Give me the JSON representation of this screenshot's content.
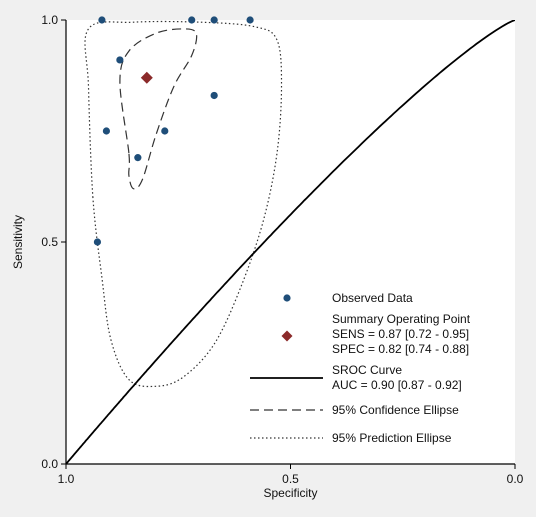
{
  "chart_data": {
    "type": "scatter",
    "title": "",
    "xlabel": "Specificity",
    "ylabel": "Sensitivity",
    "x_reversed": true,
    "xlim": [
      1.0,
      0.0
    ],
    "ylim": [
      0.0,
      1.0
    ],
    "x_ticks": [
      "1.0",
      "0.5",
      "0.0"
    ],
    "y_ticks": [
      "0.0",
      "0.5",
      "1.0"
    ],
    "grid": false,
    "legend_placement": "bottom-right",
    "colors": {
      "observed": "#1f4e79",
      "summary": "#8b2a2a",
      "axes": "#000000",
      "plot_bg": "#ffffff",
      "page_bg": "#f0f0f0"
    },
    "series": [
      {
        "name": "Observed Data",
        "kind": "points",
        "points": [
          {
            "x": 0.92,
            "y": 1.0
          },
          {
            "x": 0.72,
            "y": 1.0
          },
          {
            "x": 0.67,
            "y": 1.0
          },
          {
            "x": 0.59,
            "y": 1.0
          },
          {
            "x": 0.88,
            "y": 0.91
          },
          {
            "x": 0.67,
            "y": 0.83
          },
          {
            "x": 0.91,
            "y": 0.75
          },
          {
            "x": 0.78,
            "y": 0.75
          },
          {
            "x": 0.84,
            "y": 0.69
          },
          {
            "x": 0.93,
            "y": 0.5
          }
        ]
      },
      {
        "name": "Summary Operating Point",
        "kind": "summary",
        "point": {
          "x": 0.82,
          "y": 0.87
        },
        "lines": [
          "SENS = 0.87 [0.72 - 0.95]",
          "SPEC = 0.82 [0.74 - 0.88]"
        ]
      },
      {
        "name": "SROC Curve",
        "kind": "curve",
        "lines": [
          "AUC = 0.90 [0.87 - 0.92]"
        ]
      },
      {
        "name": "95% Confidence Ellipse",
        "kind": "ellipse",
        "path": [
          {
            "x": 0.86,
            "y": 0.7
          },
          {
            "x": 0.88,
            "y": 0.86
          },
          {
            "x": 0.86,
            "y": 0.93
          },
          {
            "x": 0.8,
            "y": 0.97
          },
          {
            "x": 0.74,
            "y": 0.98
          },
          {
            "x": 0.71,
            "y": 0.97
          },
          {
            "x": 0.72,
            "y": 0.92
          },
          {
            "x": 0.76,
            "y": 0.85
          },
          {
            "x": 0.8,
            "y": 0.74
          },
          {
            "x": 0.83,
            "y": 0.64
          },
          {
            "x": 0.85,
            "y": 0.62
          },
          {
            "x": 0.86,
            "y": 0.65
          }
        ]
      },
      {
        "name": "95% Prediction Ellipse",
        "kind": "ellipse",
        "path": [
          {
            "x": 0.94,
            "y": 0.6
          },
          {
            "x": 0.95,
            "y": 0.85
          },
          {
            "x": 0.95,
            "y": 0.98
          },
          {
            "x": 0.85,
            "y": 0.995
          },
          {
            "x": 0.7,
            "y": 0.995
          },
          {
            "x": 0.58,
            "y": 0.985
          },
          {
            "x": 0.53,
            "y": 0.955
          },
          {
            "x": 0.52,
            "y": 0.85
          },
          {
            "x": 0.53,
            "y": 0.7
          },
          {
            "x": 0.56,
            "y": 0.55
          },
          {
            "x": 0.61,
            "y": 0.4
          },
          {
            "x": 0.67,
            "y": 0.27
          },
          {
            "x": 0.74,
            "y": 0.195
          },
          {
            "x": 0.8,
            "y": 0.175
          },
          {
            "x": 0.86,
            "y": 0.19
          },
          {
            "x": 0.9,
            "y": 0.28
          },
          {
            "x": 0.92,
            "y": 0.42
          }
        ]
      }
    ]
  }
}
